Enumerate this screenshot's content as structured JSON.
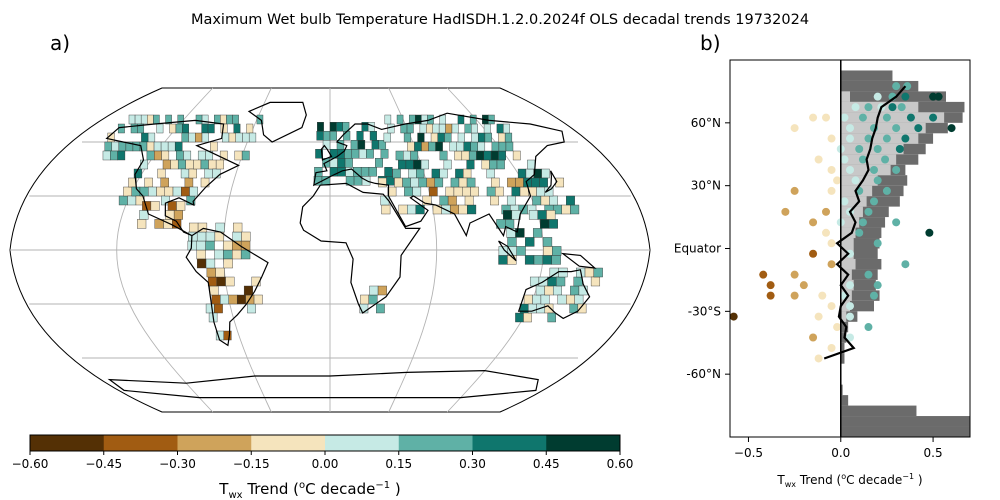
{
  "figure": {
    "title": "Maximum Wet bulb Temperature HadISDH.1.2.0.2024f OLS decadal trends 19732024"
  },
  "panel_a": {
    "label": "a)",
    "colorbar": {
      "ticks": [
        "-0.60",
        "-0.45",
        "-0.30",
        "-0.15",
        "0.00",
        "0.15",
        "0.30",
        "0.45",
        "0.60"
      ],
      "colors": [
        "#543005",
        "#a15c12",
        "#cfa35b",
        "#f5e4bd",
        "#c6eae5",
        "#5fb1a6",
        "#0f766d",
        "#003c30"
      ],
      "label": "T_wx Trend (°C decade⁻¹ )"
    }
  },
  "chart_data": {
    "type": "scatter",
    "title": "",
    "label": "b)",
    "xlabel": "T_wx Trend (°C decade⁻¹ )",
    "ylabel": "",
    "xlim": [
      -0.6,
      0.7
    ],
    "ylim": [
      -90,
      90
    ],
    "x_ticks": [
      -0.5,
      0.0,
      0.5
    ],
    "x_tick_labels": [
      "−0.5",
      "0.0",
      "0.5"
    ],
    "y_ticks": [
      60,
      30,
      0,
      -30,
      -60
    ],
    "y_tick_labels": [
      "60°N",
      "30°N",
      "Equator",
      "-30°S",
      "-60°N"
    ],
    "grid": false,
    "zero_line": 0.0,
    "colors": {
      "land_fraction": "#6b6b6b",
      "observed_fraction": "#c8c8c8",
      "zonal_mean_line": "#000000"
    },
    "land_fraction_bars": [
      {
        "lat": 82.5,
        "value": 0.28
      },
      {
        "lat": 77.5,
        "value": 0.42
      },
      {
        "lat": 72.5,
        "value": 0.57
      },
      {
        "lat": 67.5,
        "value": 0.67
      },
      {
        "lat": 62.5,
        "value": 0.66
      },
      {
        "lat": 57.5,
        "value": 0.58
      },
      {
        "lat": 52.5,
        "value": 0.5
      },
      {
        "lat": 47.5,
        "value": 0.46
      },
      {
        "lat": 42.5,
        "value": 0.42
      },
      {
        "lat": 37.5,
        "value": 0.35
      },
      {
        "lat": 32.5,
        "value": 0.36
      },
      {
        "lat": 27.5,
        "value": 0.34
      },
      {
        "lat": 22.5,
        "value": 0.32
      },
      {
        "lat": 17.5,
        "value": 0.26
      },
      {
        "lat": 12.5,
        "value": 0.24
      },
      {
        "lat": 7.5,
        "value": 0.22
      },
      {
        "lat": 2.5,
        "value": 0.21
      },
      {
        "lat": -2.5,
        "value": 0.2
      },
      {
        "lat": -7.5,
        "value": 0.22
      },
      {
        "lat": -12.5,
        "value": 0.2
      },
      {
        "lat": -17.5,
        "value": 0.19
      },
      {
        "lat": -22.5,
        "value": 0.21
      },
      {
        "lat": -27.5,
        "value": 0.18
      },
      {
        "lat": -32.5,
        "value": 0.09
      },
      {
        "lat": -37.5,
        "value": 0.04
      },
      {
        "lat": -42.5,
        "value": 0.03
      },
      {
        "lat": -47.5,
        "value": 0.02
      },
      {
        "lat": -52.5,
        "value": 0.02
      },
      {
        "lat": -57.5,
        "value": 0.0
      },
      {
        "lat": -62.5,
        "value": 0.0
      },
      {
        "lat": -67.5,
        "value": 0.01
      },
      {
        "lat": -72.5,
        "value": 0.04
      },
      {
        "lat": -77.5,
        "value": 0.41
      },
      {
        "lat": -82.5,
        "value": 0.71
      },
      {
        "lat": -87.5,
        "value": 0.71
      }
    ],
    "observed_fraction_bars": [
      {
        "lat": 72.5,
        "value": 0.05
      },
      {
        "lat": 67.5,
        "value": 0.42
      },
      {
        "lat": 62.5,
        "value": 0.56
      },
      {
        "lat": 57.5,
        "value": 0.46
      },
      {
        "lat": 52.5,
        "value": 0.42
      },
      {
        "lat": 47.5,
        "value": 0.34
      },
      {
        "lat": 42.5,
        "value": 0.3
      },
      {
        "lat": 37.5,
        "value": 0.27
      },
      {
        "lat": 32.5,
        "value": 0.2
      },
      {
        "lat": 27.5,
        "value": 0.17
      },
      {
        "lat": 22.5,
        "value": 0.14
      },
      {
        "lat": 17.5,
        "value": 0.12
      },
      {
        "lat": 12.5,
        "value": 0.1
      },
      {
        "lat": 7.5,
        "value": 0.08
      },
      {
        "lat": 2.5,
        "value": 0.07
      },
      {
        "lat": -2.5,
        "value": 0.07
      },
      {
        "lat": -7.5,
        "value": 0.08
      },
      {
        "lat": -12.5,
        "value": 0.06
      },
      {
        "lat": -17.5,
        "value": 0.07
      },
      {
        "lat": -22.5,
        "value": 0.06
      },
      {
        "lat": -27.5,
        "value": 0.05
      },
      {
        "lat": -32.5,
        "value": 0.03
      }
    ],
    "zonal_mean_line": [
      {
        "lat": 77.5,
        "value": 0.35
      },
      {
        "lat": 72.5,
        "value": 0.3
      },
      {
        "lat": 67.5,
        "value": 0.22
      },
      {
        "lat": 62.5,
        "value": 0.2
      },
      {
        "lat": 57.5,
        "value": 0.19
      },
      {
        "lat": 52.5,
        "value": 0.17
      },
      {
        "lat": 47.5,
        "value": 0.16
      },
      {
        "lat": 42.5,
        "value": 0.14
      },
      {
        "lat": 37.5,
        "value": 0.15
      },
      {
        "lat": 32.5,
        "value": 0.12
      },
      {
        "lat": 27.5,
        "value": 0.08
      },
      {
        "lat": 22.5,
        "value": 0.1
      },
      {
        "lat": 17.5,
        "value": 0.05
      },
      {
        "lat": 12.5,
        "value": 0.08
      },
      {
        "lat": 7.5,
        "value": 0.06
      },
      {
        "lat": 2.5,
        "value": -0.02
      },
      {
        "lat": -2.5,
        "value": 0.04
      },
      {
        "lat": -7.5,
        "value": -0.02
      },
      {
        "lat": -12.5,
        "value": 0.04
      },
      {
        "lat": -17.5,
        "value": 0.0
      },
      {
        "lat": -22.5,
        "value": 0.04
      },
      {
        "lat": -27.5,
        "value": 0.0
      },
      {
        "lat": -32.5,
        "value": -0.01
      },
      {
        "lat": -37.5,
        "value": 0.03
      },
      {
        "lat": -42.5,
        "value": 0.02
      },
      {
        "lat": -47.5,
        "value": 0.07
      },
      {
        "lat": -52.5,
        "value": -0.09
      }
    ],
    "points": [
      {
        "lat": 77.5,
        "value": 0.36,
        "color": "#5fb1a6"
      },
      {
        "lat": 77.5,
        "value": 0.3,
        "color": "#5fb1a6"
      },
      {
        "lat": 72.5,
        "value": 0.5,
        "color": "#003c30"
      },
      {
        "lat": 72.5,
        "value": 0.53,
        "color": "#003c30"
      },
      {
        "lat": 72.5,
        "value": 0.28,
        "color": "#5fb1a6"
      },
      {
        "lat": 72.5,
        "value": 0.2,
        "color": "#c6eae5"
      },
      {
        "lat": 72.5,
        "value": 0.35,
        "color": "#0f766d"
      },
      {
        "lat": 67.5,
        "value": 0.22,
        "color": "#c6eae5"
      },
      {
        "lat": 67.5,
        "value": 0.15,
        "color": "#5fb1a6"
      },
      {
        "lat": 67.5,
        "value": 0.33,
        "color": "#5fb1a6"
      },
      {
        "lat": 67.5,
        "value": 0.08,
        "color": "#c6eae5"
      },
      {
        "lat": 67.5,
        "value": 0.28,
        "color": "#0f766d"
      },
      {
        "lat": 62.5,
        "value": -0.15,
        "color": "#f5e4bd"
      },
      {
        "lat": 62.5,
        "value": -0.08,
        "color": "#f5e4bd"
      },
      {
        "lat": 62.5,
        "value": 0.02,
        "color": "#c6eae5"
      },
      {
        "lat": 62.5,
        "value": 0.12,
        "color": "#5fb1a6"
      },
      {
        "lat": 62.5,
        "value": 0.25,
        "color": "#5fb1a6"
      },
      {
        "lat": 62.5,
        "value": 0.38,
        "color": "#0f766d"
      },
      {
        "lat": 62.5,
        "value": 0.5,
        "color": "#0f766d"
      },
      {
        "lat": 57.5,
        "value": 0.6,
        "color": "#003c30"
      },
      {
        "lat": 57.5,
        "value": -0.25,
        "color": "#f5e4bd"
      },
      {
        "lat": 57.5,
        "value": 0.05,
        "color": "#c6eae5"
      },
      {
        "lat": 57.5,
        "value": 0.18,
        "color": "#5fb1a6"
      },
      {
        "lat": 57.5,
        "value": 0.3,
        "color": "#5fb1a6"
      },
      {
        "lat": 57.5,
        "value": 0.42,
        "color": "#0f766d"
      },
      {
        "lat": 52.5,
        "value": -0.05,
        "color": "#f5e4bd"
      },
      {
        "lat": 52.5,
        "value": 0.05,
        "color": "#c6eae5"
      },
      {
        "lat": 52.5,
        "value": 0.15,
        "color": "#5fb1a6"
      },
      {
        "lat": 52.5,
        "value": 0.25,
        "color": "#5fb1a6"
      },
      {
        "lat": 52.5,
        "value": 0.35,
        "color": "#0f766d"
      },
      {
        "lat": 47.5,
        "value": 0.0,
        "color": "#c6eae5"
      },
      {
        "lat": 47.5,
        "value": 0.1,
        "color": "#5fb1a6"
      },
      {
        "lat": 47.5,
        "value": 0.2,
        "color": "#5fb1a6"
      },
      {
        "lat": 47.5,
        "value": 0.32,
        "color": "#0f766d"
      },
      {
        "lat": 42.5,
        "value": -0.12,
        "color": "#f5e4bd"
      },
      {
        "lat": 42.5,
        "value": 0.02,
        "color": "#c6eae5"
      },
      {
        "lat": 42.5,
        "value": 0.12,
        "color": "#5fb1a6"
      },
      {
        "lat": 42.5,
        "value": 0.24,
        "color": "#5fb1a6"
      },
      {
        "lat": 37.5,
        "value": -0.05,
        "color": "#f5e4bd"
      },
      {
        "lat": 37.5,
        "value": 0.05,
        "color": "#c6eae5"
      },
      {
        "lat": 37.5,
        "value": 0.18,
        "color": "#5fb1a6"
      },
      {
        "lat": 37.5,
        "value": 0.3,
        "color": "#5fb1a6"
      },
      {
        "lat": 32.5,
        "value": -0.02,
        "color": "#f5e4bd"
      },
      {
        "lat": 32.5,
        "value": 0.08,
        "color": "#c6eae5"
      },
      {
        "lat": 32.5,
        "value": 0.2,
        "color": "#5fb1a6"
      },
      {
        "lat": 27.5,
        "value": -0.25,
        "color": "#cfa35b"
      },
      {
        "lat": 27.5,
        "value": -0.05,
        "color": "#f5e4bd"
      },
      {
        "lat": 27.5,
        "value": 0.1,
        "color": "#5fb1a6"
      },
      {
        "lat": 27.5,
        "value": 0.25,
        "color": "#5fb1a6"
      },
      {
        "lat": 22.5,
        "value": 0.02,
        "color": "#c6eae5"
      },
      {
        "lat": 22.5,
        "value": 0.18,
        "color": "#5fb1a6"
      },
      {
        "lat": 17.5,
        "value": -0.3,
        "color": "#cfa35b"
      },
      {
        "lat": 17.5,
        "value": -0.08,
        "color": "#cfa35b"
      },
      {
        "lat": 17.5,
        "value": 0.05,
        "color": "#c6eae5"
      },
      {
        "lat": 17.5,
        "value": 0.15,
        "color": "#5fb1a6"
      },
      {
        "lat": 12.5,
        "value": -0.15,
        "color": "#cfa35b"
      },
      {
        "lat": 12.5,
        "value": 0.0,
        "color": "#c6eae5"
      },
      {
        "lat": 12.5,
        "value": 0.12,
        "color": "#5fb1a6"
      },
      {
        "lat": 12.5,
        "value": 0.3,
        "color": "#5fb1a6"
      },
      {
        "lat": 7.5,
        "value": 0.48,
        "color": "#003c30"
      },
      {
        "lat": 7.5,
        "value": -0.08,
        "color": "#f5e4bd"
      },
      {
        "lat": 7.5,
        "value": 0.1,
        "color": "#5fb1a6"
      },
      {
        "lat": 2.5,
        "value": -0.05,
        "color": "#f5e4bd"
      },
      {
        "lat": 2.5,
        "value": 0.2,
        "color": "#5fb1a6"
      },
      {
        "lat": -2.5,
        "value": -0.15,
        "color": "#a15c12"
      },
      {
        "lat": -2.5,
        "value": 0.05,
        "color": "#c6eae5"
      },
      {
        "lat": -7.5,
        "value": -0.05,
        "color": "#cfa35b"
      },
      {
        "lat": -7.5,
        "value": 0.35,
        "color": "#5fb1a6"
      },
      {
        "lat": -12.5,
        "value": -0.42,
        "color": "#a15c12"
      },
      {
        "lat": -12.5,
        "value": -0.25,
        "color": "#cfa35b"
      },
      {
        "lat": -12.5,
        "value": 0.15,
        "color": "#5fb1a6"
      },
      {
        "lat": -17.5,
        "value": -0.38,
        "color": "#a15c12"
      },
      {
        "lat": -17.5,
        "value": -0.2,
        "color": "#cfa35b"
      },
      {
        "lat": -17.5,
        "value": 0.05,
        "color": "#c6eae5"
      },
      {
        "lat": -17.5,
        "value": 0.2,
        "color": "#5fb1a6"
      },
      {
        "lat": -22.5,
        "value": -0.38,
        "color": "#a15c12"
      },
      {
        "lat": -22.5,
        "value": -0.25,
        "color": "#cfa35b"
      },
      {
        "lat": -22.5,
        "value": -0.1,
        "color": "#f5e4bd"
      },
      {
        "lat": -22.5,
        "value": 0.02,
        "color": "#c6eae5"
      },
      {
        "lat": -22.5,
        "value": 0.18,
        "color": "#5fb1a6"
      },
      {
        "lat": -27.5,
        "value": -0.05,
        "color": "#f5e4bd"
      },
      {
        "lat": -27.5,
        "value": 0.05,
        "color": "#c6eae5"
      },
      {
        "lat": -32.5,
        "value": -0.58,
        "color": "#543005"
      },
      {
        "lat": -32.5,
        "value": -0.12,
        "color": "#f5e4bd"
      },
      {
        "lat": -32.5,
        "value": 0.05,
        "color": "#c6eae5"
      },
      {
        "lat": -37.5,
        "value": -0.02,
        "color": "#f5e4bd"
      },
      {
        "lat": -37.5,
        "value": 0.15,
        "color": "#5fb1a6"
      },
      {
        "lat": -42.5,
        "value": -0.15,
        "color": "#cfa35b"
      },
      {
        "lat": -42.5,
        "value": 0.05,
        "color": "#c6eae5"
      },
      {
        "lat": -47.5,
        "value": -0.05,
        "color": "#f5e4bd"
      },
      {
        "lat": -52.5,
        "value": -0.12,
        "color": "#f5e4bd"
      }
    ]
  }
}
